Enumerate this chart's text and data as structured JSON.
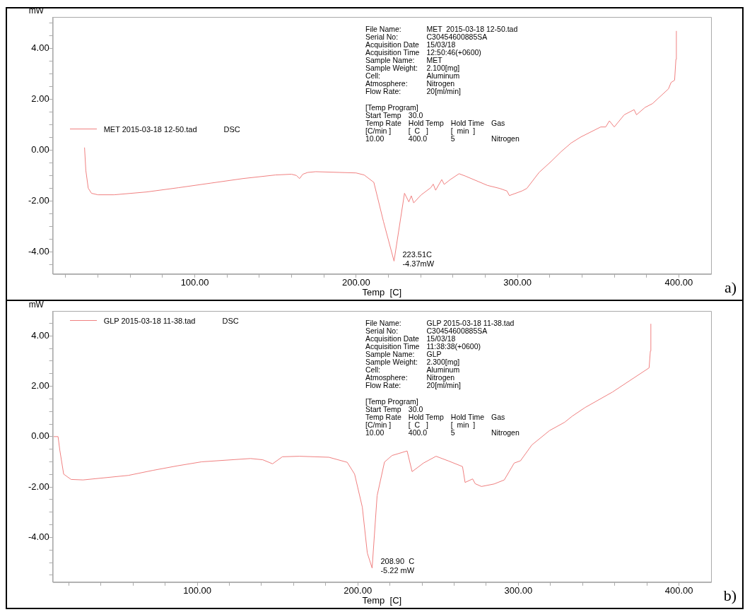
{
  "chart_data": [
    {
      "type": "line",
      "xlabel": "Temp  [C]",
      "ylabel": "mW",
      "legend": "left",
      "grid": false,
      "marker": "none",
      "line_style": "solid",
      "xlim": [
        12,
        420
      ],
      "ylim": [
        -4.88,
        5.24
      ],
      "xticks": [
        {
          "value": 20,
          "label": null
        },
        {
          "value": 40,
          "label": null
        },
        {
          "value": 60,
          "label": null
        },
        {
          "value": 80,
          "label": null
        },
        {
          "value": 100,
          "label": "100.00"
        },
        {
          "value": 120,
          "label": null
        },
        {
          "value": 140,
          "label": null
        },
        {
          "value": 160,
          "label": null
        },
        {
          "value": 180,
          "label": null
        },
        {
          "value": 200,
          "label": "200.00"
        },
        {
          "value": 220,
          "label": null
        },
        {
          "value": 240,
          "label": null
        },
        {
          "value": 260,
          "label": null
        },
        {
          "value": 280,
          "label": null
        },
        {
          "value": 300,
          "label": "300.00"
        },
        {
          "value": 320,
          "label": null
        },
        {
          "value": 340,
          "label": null
        },
        {
          "value": 360,
          "label": null
        },
        {
          "value": 380,
          "label": null
        },
        {
          "value": 400,
          "label": "400.00"
        }
      ],
      "yticks": [
        {
          "value": -4.5,
          "label": null
        },
        {
          "value": -4,
          "label": "-4.00"
        },
        {
          "value": -3.5,
          "label": null
        },
        {
          "value": -3,
          "label": null
        },
        {
          "value": -2.5,
          "label": null
        },
        {
          "value": -2,
          "label": "-2.00"
        },
        {
          "value": -1.5,
          "label": null
        },
        {
          "value": -1,
          "label": null
        },
        {
          "value": -0.5,
          "label": null
        },
        {
          "value": 0,
          "label": "0.00"
        },
        {
          "value": 0.5,
          "label": null
        },
        {
          "value": 1,
          "label": null
        },
        {
          "value": 1.5,
          "label": null
        },
        {
          "value": 2,
          "label": "2.00"
        },
        {
          "value": 2.5,
          "label": null
        },
        {
          "value": 3,
          "label": null
        },
        {
          "value": 3.5,
          "label": null
        },
        {
          "value": 4,
          "label": "4.00"
        },
        {
          "value": 4.5,
          "label": null
        },
        {
          "value": 5,
          "label": null
        }
      ],
      "series": [
        {
          "name": "MET 2015-03-18 12-50.tad",
          "color": "#f08080",
          "x": [
            31.7,
            32.5,
            34,
            36,
            40,
            50,
            70,
            90,
            110,
            130,
            150,
            160,
            163,
            165,
            167,
            170,
            175,
            190,
            200,
            205,
            211,
            217,
            223.51,
            230,
            232.7,
            234.2,
            235.7,
            240.2,
            246.3,
            247.8,
            249.3,
            253.1,
            254.6,
            258.4,
            263.8,
            267.6,
            281.4,
            289,
            293.5,
            295,
            302.8,
            305.8,
            313.4,
            321,
            327.1,
            333.3,
            339.4,
            351.6,
            354.7,
            357,
            360,
            366.2,
            372.3,
            373.8,
            379.1,
            383.7,
            393.6,
            395.2,
            397.4,
            398.2,
            398.5
          ],
          "values": [
            0.1,
            -0.8,
            -1.5,
            -1.7,
            -1.76,
            -1.76,
            -1.65,
            -1.48,
            -1.3,
            -1.12,
            -0.98,
            -0.95,
            -1.0,
            -1.12,
            -0.95,
            -0.88,
            -0.85,
            -0.88,
            -0.9,
            -0.98,
            -1.27,
            -2.82,
            -4.37,
            -1.7,
            -2.04,
            -1.8,
            -2.08,
            -1.77,
            -1.48,
            -1.34,
            -1.58,
            -1.16,
            -1.35,
            -1.16,
            -0.93,
            -1.02,
            -1.39,
            -1.51,
            -1.61,
            -1.79,
            -1.61,
            -1.51,
            -0.88,
            -0.44,
            -0.06,
            0.28,
            0.52,
            0.91,
            0.91,
            1.15,
            0.91,
            1.39,
            1.59,
            1.39,
            1.68,
            1.83,
            2.41,
            2.66,
            2.75,
            3.57,
            4.69
          ]
        }
      ],
      "annotations": [
        "DSC",
        "File Name:\tMET  2015-03-18 12-50.tad\nSerial No:\tC30454600885SA\nAcquisition Date\t15/03/18\nAcquisition Time\t12:50:46(+0600)\nSample Name:\tMET\nSample Weight:\t2.100[mg]\nCell:\tAluminum\nAtmosphere:\tNitrogen\nFlow Rate:\t20[ml/min]",
        "[Temp Program]\nStart Temp\t30.0\nTemp Rate\tHold Temp\tHold Time\tGas\n[C/min ]\t[  C   ]\t[  min  ]\n10.00\t400.0\t5\tNitrogen",
        {
          "text": "223.51C\n-4.37mW",
          "x": 223.51,
          "y": -4.37
        },
        "a)"
      ]
    },
    {
      "type": "line",
      "xlabel": "Temp  [C]",
      "ylabel": "mW",
      "legend": "top left",
      "grid": false,
      "marker": "none",
      "line_style": "solid",
      "xlim": [
        10,
        420
      ],
      "ylim": [
        -5.78,
        4.99
      ],
      "xticks": [
        {
          "value": 20,
          "label": null
        },
        {
          "value": 40,
          "label": null
        },
        {
          "value": 60,
          "label": null
        },
        {
          "value": 80,
          "label": null
        },
        {
          "value": 100,
          "label": "100.00"
        },
        {
          "value": 120,
          "label": null
        },
        {
          "value": 140,
          "label": null
        },
        {
          "value": 160,
          "label": null
        },
        {
          "value": 180,
          "label": null
        },
        {
          "value": 200,
          "label": "200.00"
        },
        {
          "value": 220,
          "label": null
        },
        {
          "value": 240,
          "label": null
        },
        {
          "value": 260,
          "label": null
        },
        {
          "value": 280,
          "label": null
        },
        {
          "value": 300,
          "label": "300.00"
        },
        {
          "value": 320,
          "label": null
        },
        {
          "value": 340,
          "label": null
        },
        {
          "value": 360,
          "label": null
        },
        {
          "value": 380,
          "label": null
        },
        {
          "value": 400,
          "label": "400.00"
        }
      ],
      "yticks": [
        {
          "value": -5.5,
          "label": null
        },
        {
          "value": -5,
          "label": null
        },
        {
          "value": -4.5,
          "label": null
        },
        {
          "value": -4,
          "label": "-4.00"
        },
        {
          "value": -3.5,
          "label": null
        },
        {
          "value": -3,
          "label": null
        },
        {
          "value": -2.5,
          "label": null
        },
        {
          "value": -2,
          "label": "-2.00"
        },
        {
          "value": -1.5,
          "label": null
        },
        {
          "value": -1,
          "label": null
        },
        {
          "value": -0.5,
          "label": null
        },
        {
          "value": 0,
          "label": "0.00"
        },
        {
          "value": 0.5,
          "label": null
        },
        {
          "value": 1,
          "label": null
        },
        {
          "value": 1.5,
          "label": null
        },
        {
          "value": 2,
          "label": "2.00"
        },
        {
          "value": 2.5,
          "label": null
        },
        {
          "value": 3,
          "label": null
        },
        {
          "value": 3.5,
          "label": null
        },
        {
          "value": 4,
          "label": "4.00"
        },
        {
          "value": 4.5,
          "label": null
        }
      ],
      "series": [
        {
          "name": "GLP 2015-03-18 11-38.tad",
          "color": "#f08080",
          "x": [
            10.5,
            13.3,
            14.4,
            16.8,
            21.4,
            28.9,
            57.1,
            72.4,
            87.6,
            102.8,
            133.2,
            140.8,
            146.9,
            153,
            163.7,
            182,
            193.4,
            198,
            202.8,
            205.9,
            208.9,
            212,
            216.6,
            221.3,
            230.7,
            233.8,
            240.9,
            248.7,
            256.6,
            265.2,
            266.8,
            271.5,
            273.1,
            277,
            284.9,
            291.2,
            297.4,
            301.3,
            308.4,
            319.4,
            328.8,
            333.5,
            341.4,
            358.6,
            381.4,
            382.2,
            382.5
          ],
          "values": [
            0,
            0,
            -0.54,
            -1.49,
            -1.7,
            -1.72,
            -1.54,
            -1.34,
            -1.16,
            -1.0,
            -0.87,
            -0.92,
            -1.08,
            -0.8,
            -0.78,
            -0.82,
            -1.02,
            -1.49,
            -2.8,
            -4.62,
            -5.22,
            -2.35,
            -1.01,
            -0.75,
            -0.57,
            -1.39,
            -1.05,
            -0.78,
            -0.97,
            -1.19,
            -1.82,
            -1.68,
            -1.87,
            -1.98,
            -1.88,
            -1.72,
            -1.05,
            -0.96,
            -0.33,
            0.24,
            0.57,
            0.81,
            1.15,
            1.77,
            2.73,
            3.4,
            4.48
          ]
        }
      ],
      "annotations": [
        "DSC",
        "File Name:\tGLP 2015-03-18 11-38.tad\nSerial No:\tC30454600885SA\nAcquisition Date\t15/03/18\nAcquisition Time\t11:38:38(+0600)\nSample Name:\tGLP\nSample Weight:\t2.300[mg]\nCell:\tAluminum\nAtmosphere:\tNitrogen\nFlow Rate:\t20[ml/min]",
        "[Temp Program]\nStart Temp\t30.0\nTemp Rate\tHold Temp\tHold Time\tGas\n[C/min ]\t[  C   ]\t[  min  ]\n10.00\t400.0\t5\tNitrogen",
        {
          "text": "208.90  C\n-5.22 mW",
          "x": 208.9,
          "y": -5.22
        },
        "b)"
      ]
    }
  ]
}
